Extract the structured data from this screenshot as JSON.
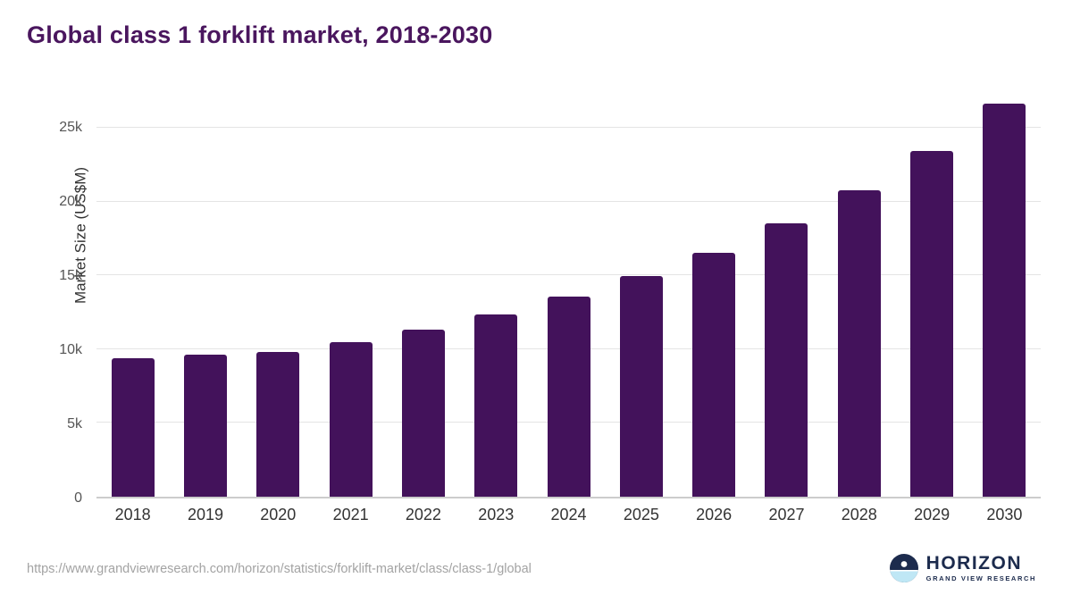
{
  "title": "Global class 1 forklift market, 2018-2030",
  "chart_data": {
    "type": "bar",
    "title": "Global class 1 forklift market, 2018-2030",
    "categories": [
      "2018",
      "2019",
      "2020",
      "2021",
      "2022",
      "2023",
      "2024",
      "2025",
      "2026",
      "2027",
      "2028",
      "2029",
      "2030"
    ],
    "values": [
      9400,
      9600,
      9800,
      10450,
      11300,
      12350,
      13550,
      14950,
      16550,
      18500,
      20750,
      23450,
      26650
    ],
    "xlabel": "",
    "ylabel": "Market Size (US$M)",
    "ylim": [
      0,
      27600
    ],
    "yticks": [
      {
        "label": "0",
        "value": 0
      },
      {
        "label": "5k",
        "value": 5000
      },
      {
        "label": "10k",
        "value": 10000
      },
      {
        "label": "15k",
        "value": 15000
      },
      {
        "label": "20k",
        "value": 20000
      },
      {
        "label": "25k",
        "value": 25000
      }
    ],
    "grid": true,
    "legend": "none",
    "bar_color": "#43125b"
  },
  "colors": {
    "title": "#4a165e",
    "bar": "#43125b",
    "gridline": "#e4e4e4",
    "axis_line": "#cccccc",
    "footer_text": "#a3a3a3",
    "logo_navy": "#1c2b4d",
    "logo_light_blue": "#bfe7f5"
  },
  "footer": {
    "source_url": "https://www.grandviewresearch.com/horizon/statistics/forklift-market/class/class-1/global"
  },
  "logo": {
    "name": "HORIZON",
    "subtitle": "GRAND VIEW RESEARCH"
  }
}
